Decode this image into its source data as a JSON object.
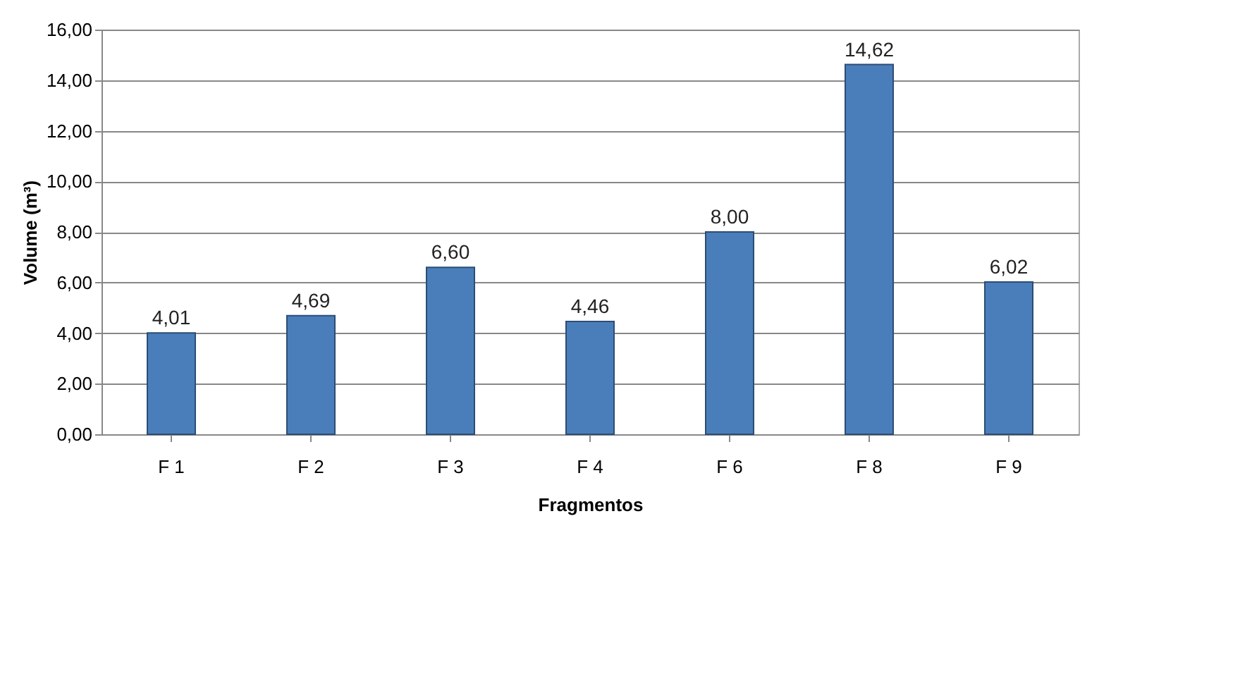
{
  "chart_data": {
    "type": "bar",
    "xlabel": "Fragmentos",
    "ylabel": "Volume (m³)",
    "categories": [
      "F 1",
      "F 2",
      "F 3",
      "F 4",
      "F 6",
      "F 8",
      "F 9"
    ],
    "values": [
      4.01,
      4.69,
      6.6,
      4.46,
      8.0,
      14.62,
      6.02
    ],
    "value_labels": [
      "4,01",
      "4,69",
      "6,60",
      "4,46",
      "8,00",
      "14,62",
      "6,02"
    ],
    "color": "#4a7ebb",
    "ylim": [
      0,
      16
    ],
    "yticks": [
      {
        "value": 0,
        "label": "0,00"
      },
      {
        "value": 2,
        "label": "2,00"
      },
      {
        "value": 4,
        "label": "4,00"
      },
      {
        "value": 6,
        "label": "6,00"
      },
      {
        "value": 8,
        "label": "8,00"
      },
      {
        "value": 10,
        "label": "10,00"
      },
      {
        "value": 12,
        "label": "12,00"
      },
      {
        "value": 14,
        "label": "14,00"
      },
      {
        "value": 16,
        "label": "16,00"
      }
    ],
    "grid": "y"
  }
}
